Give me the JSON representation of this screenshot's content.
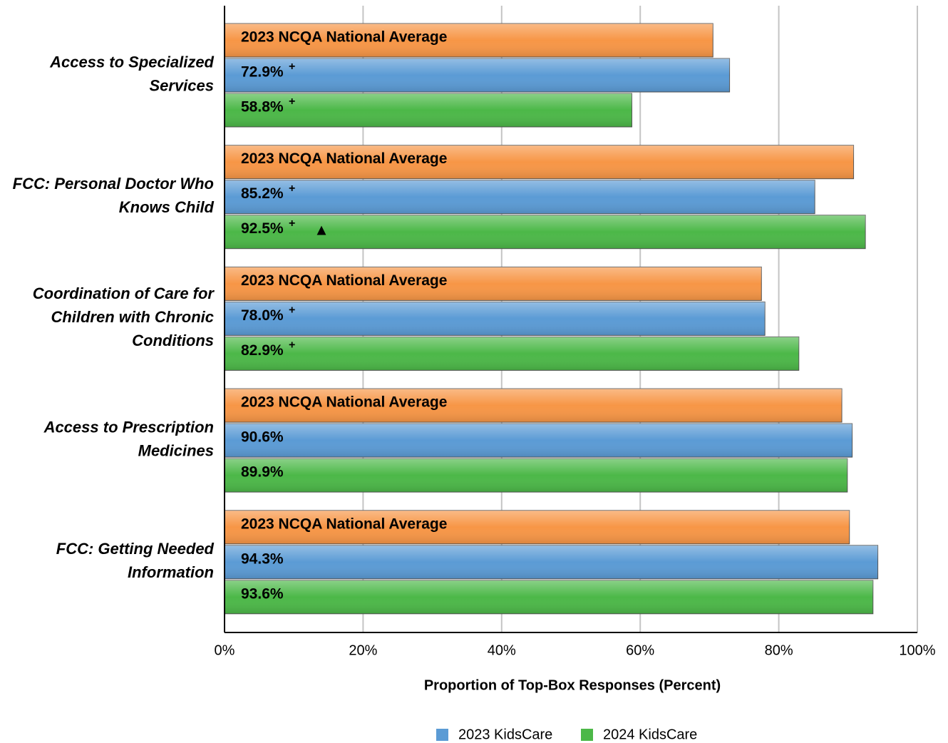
{
  "chart_data": {
    "type": "bar",
    "orientation": "horizontal",
    "x_label": "Proportion of Top-Box Responses (Percent)",
    "categories": [
      [
        "Access to Specialized",
        "Services"
      ],
      [
        "FCC: Personal Doctor Who",
        "Knows Child"
      ],
      [
        "Coordination of Care for",
        "Children with Chronic",
        "Conditions"
      ],
      [
        "Access to Prescription",
        "Medicines"
      ],
      [
        "FCC: Getting Needed",
        "Information"
      ]
    ],
    "benchmark": {
      "label": "2023 NCQA National Average",
      "color": "#f79646",
      "values": [
        70.5,
        90.8,
        77.5,
        89.1,
        90.2
      ]
    },
    "series": [
      {
        "name": "2023 KidsCare",
        "color": "#5b9bd5",
        "values": [
          72.9,
          85.2,
          78.0,
          90.6,
          94.3
        ],
        "value_labels": [
          "72.9%",
          "85.2%",
          "78.0%",
          "90.6%",
          "94.3%"
        ],
        "superscripts": [
          "+",
          "+",
          "+",
          null,
          null
        ]
      },
      {
        "name": "2024 KidsCare",
        "color": "#4cb848",
        "values": [
          58.8,
          92.5,
          82.9,
          89.9,
          93.6
        ],
        "value_labels": [
          "58.8%",
          "92.5%",
          "82.9%",
          "89.9%",
          "93.6%"
        ],
        "superscripts": [
          "+",
          "+",
          "+",
          null,
          null
        ],
        "markers": [
          null,
          "▲",
          null,
          null,
          null
        ]
      }
    ],
    "xlim": [
      0,
      100
    ],
    "xticks": [
      {
        "value": 0,
        "label": "0%"
      },
      {
        "value": 20,
        "label": "20%"
      },
      {
        "value": 40,
        "label": "40%"
      },
      {
        "value": 60,
        "label": "60%"
      },
      {
        "value": 80,
        "label": "80%"
      },
      {
        "value": 100,
        "label": "100%"
      }
    ],
    "grid": true,
    "legend": "bottom"
  }
}
